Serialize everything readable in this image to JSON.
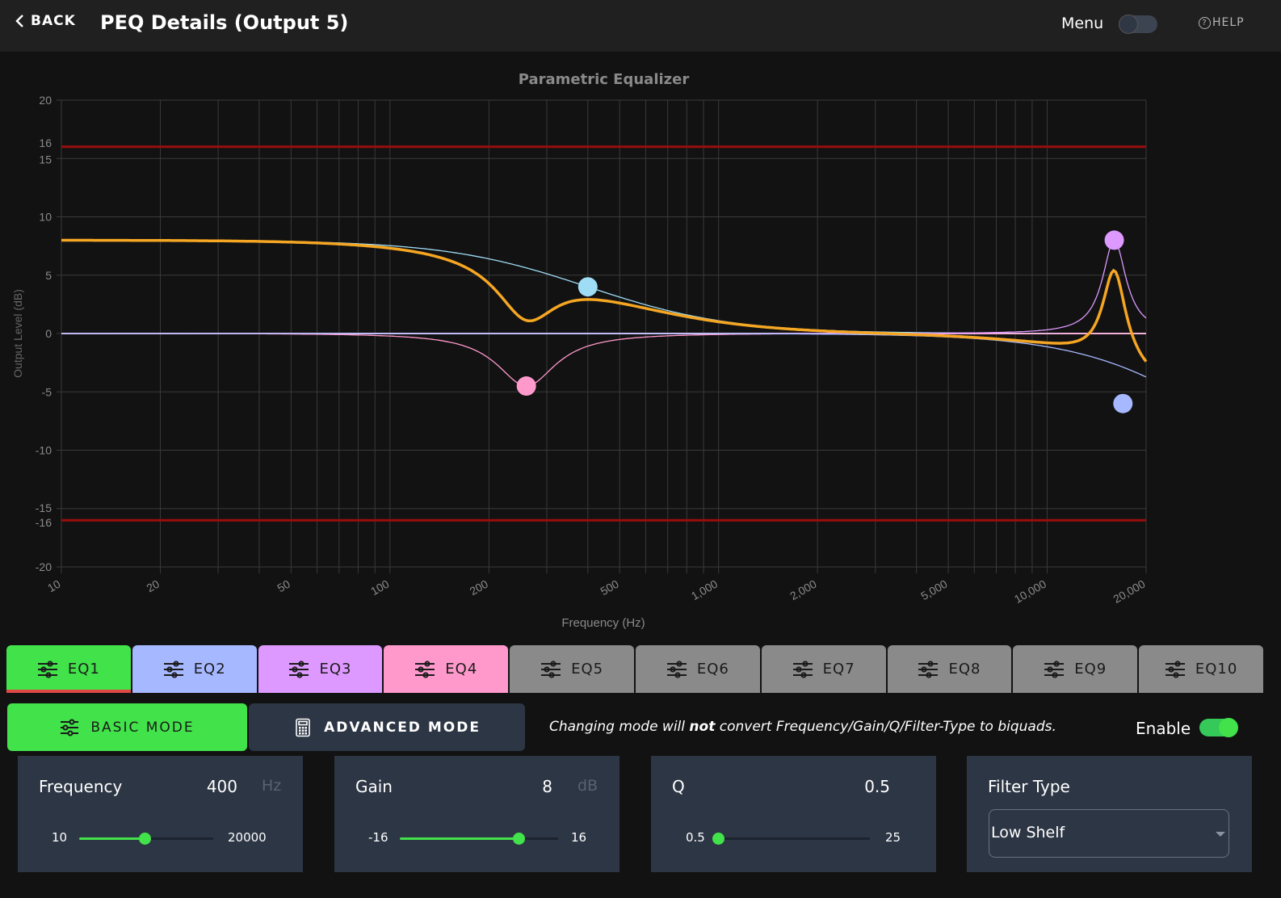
{
  "header": {
    "back_label": "BACK",
    "title": "PEQ Details (Output 5)",
    "menu_label": "Menu",
    "menu_toggle_on": false,
    "help_label": "HELP"
  },
  "chart_data": {
    "type": "line",
    "title": "Parametric Equalizer",
    "xlabel": "Frequency (Hz)",
    "ylabel": "Output Level (dB)",
    "xscale": "log",
    "xlim": [
      10,
      20000
    ],
    "ylim": [
      -20,
      20
    ],
    "x_ticks": [
      "10",
      "20",
      "50",
      "100",
      "200",
      "500",
      "1,000",
      "2,000",
      "5,000",
      "10,000",
      "20,000"
    ],
    "x_tick_values": [
      10,
      20,
      50,
      100,
      200,
      500,
      1000,
      2000,
      5000,
      10000,
      20000
    ],
    "y_ticks": [
      "20",
      "16",
      "15",
      "10",
      "5",
      "0",
      "-5",
      "-10",
      "-15",
      "-16",
      "-20"
    ],
    "y_tick_values": [
      20,
      16,
      15,
      10,
      5,
      0,
      -5,
      -10,
      -15,
      -16,
      -20
    ],
    "limit_lines": [
      16,
      -16
    ],
    "limit_color": "#9b0d0d",
    "grid": true,
    "series": [
      {
        "color": "#9fdcf5",
        "type": "low-shelf",
        "freq": 400,
        "gain": 8,
        "q": 0.5
      },
      {
        "color": "#ff99cc",
        "type": "peak",
        "freq": 260,
        "gain": -4.5,
        "q": 2
      },
      {
        "color": "#dd99ff",
        "type": "peak",
        "freq": 16000,
        "gain": 8,
        "q": 5
      },
      {
        "color": "#a6b8ff",
        "type": "high-shelf",
        "freq": 17000,
        "gain": -6,
        "q": 0.5
      },
      {
        "color": "#f5a623",
        "type": "sum"
      }
    ],
    "handles": [
      {
        "color": "#9fdcf5",
        "x": 400,
        "y": 4
      },
      {
        "color": "#ff99cc",
        "x": 260,
        "y": -4.5
      },
      {
        "color": "#dd99ff",
        "x": 16000,
        "y": 8
      },
      {
        "color": "#a6b8ff",
        "x": 17000,
        "y": -6
      }
    ]
  },
  "eq_tabs": [
    {
      "label": "EQ1",
      "color": "#42e24a",
      "active": true
    },
    {
      "label": "EQ2",
      "color": "#a6b8ff",
      "active": false
    },
    {
      "label": "EQ3",
      "color": "#dd99ff",
      "active": false
    },
    {
      "label": "EQ4",
      "color": "#ff99cc",
      "active": false
    },
    {
      "label": "EQ5",
      "color": "#8a8a8a",
      "active": false
    },
    {
      "label": "EQ6",
      "color": "#8a8a8a",
      "active": false
    },
    {
      "label": "EQ7",
      "color": "#8a8a8a",
      "active": false
    },
    {
      "label": "EQ8",
      "color": "#8a8a8a",
      "active": false
    },
    {
      "label": "EQ9",
      "color": "#8a8a8a",
      "active": false
    },
    {
      "label": "EQ10",
      "color": "#8a8a8a",
      "active": false
    }
  ],
  "mode": {
    "basic_label": "BASIC MODE",
    "advanced_label": "ADVANCED MODE",
    "note_prefix": "Changing mode will ",
    "note_bold": "not",
    "note_suffix": " convert Frequency/Gain/Q/Filter-Type to biquads.",
    "enable_label": "Enable",
    "enabled": true
  },
  "params": {
    "frequency": {
      "label": "Frequency",
      "value": "400",
      "unit": "Hz",
      "min": "10",
      "max": "20000",
      "fraction": 0.49
    },
    "gain": {
      "label": "Gain",
      "value": "8",
      "unit": "dB",
      "min": "-16",
      "max": "16",
      "fraction": 0.75
    },
    "q": {
      "label": "Q",
      "value": "0.5",
      "unit": "",
      "min": "0.5",
      "max": "25",
      "fraction": 0.0
    },
    "filter_type": {
      "label": "Filter Type",
      "value": "Low Shelf"
    }
  },
  "accent": "#42e24a"
}
